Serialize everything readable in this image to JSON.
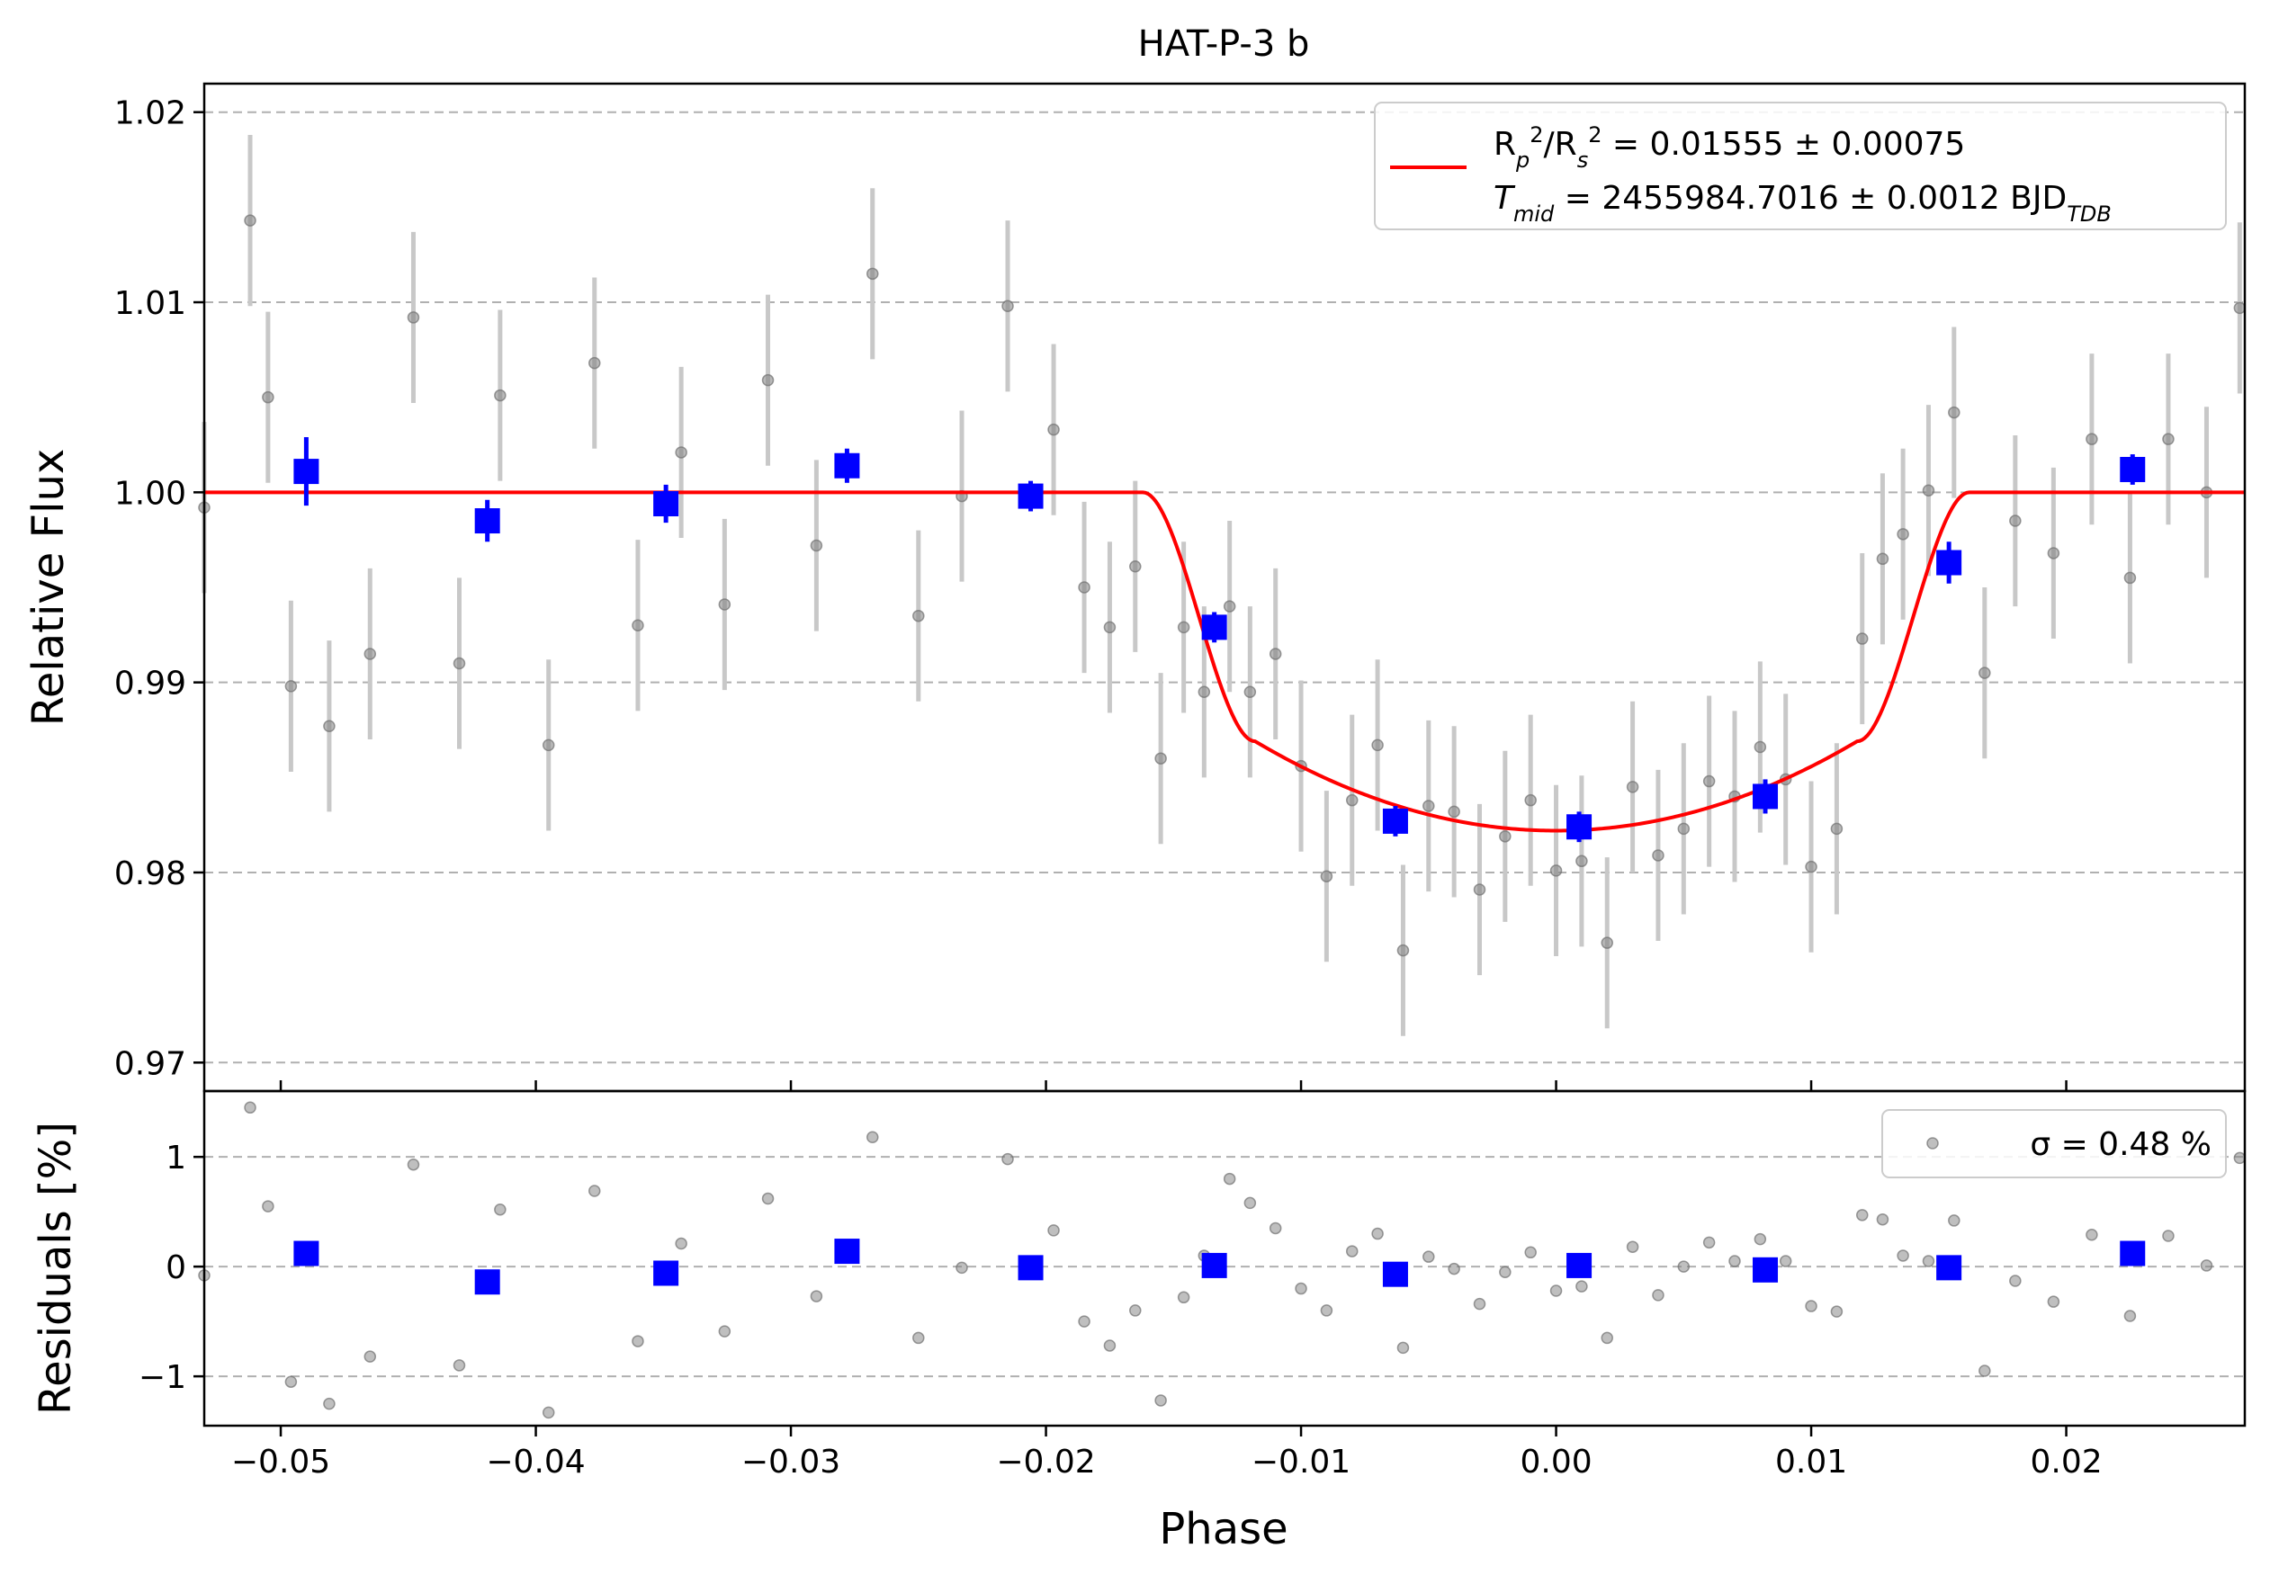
{
  "chart_data": [
    {
      "type": "scatter",
      "title": "HAT-P-3 b",
      "xlabel": "",
      "ylabel": "Relative Flux",
      "xlim": [
        -0.053,
        0.027
      ],
      "ylim": [
        0.9685,
        1.0215
      ],
      "y_ticks": [
        0.97,
        0.98,
        0.99,
        1.0,
        1.01,
        1.02
      ],
      "y_tick_labels": [
        "0.97",
        "0.98",
        "0.99",
        "1.00",
        "1.01",
        "1.02"
      ],
      "grid": "horizontal dashed",
      "legend_position": "top-right",
      "legend": {
        "line1": "R_p²/R_s² = 0.01555 ± 0.00075",
        "line2": "T_mid = 2455984.7016 ± 0.0012 BJD_TDB"
      },
      "model": {
        "name": "transit model",
        "color": "#ff0000",
        "baseline": 1.0,
        "min_flux": 0.9822,
        "ingress_start": -0.0162,
        "ingress_end": -0.0118,
        "egress_start": 0.0118,
        "egress_end": 0.0162
      },
      "binned": {
        "color": "#0000ff",
        "x": [
          -0.049,
          -0.0419,
          -0.0349,
          -0.0278,
          -0.0206,
          -0.0134,
          -0.0063,
          0.0009,
          0.0082,
          0.0154,
          0.0226
        ],
        "y": [
          1.0011,
          0.9985,
          0.9994,
          1.0014,
          0.9998,
          0.9929,
          0.9827,
          0.9824,
          0.984,
          0.9963,
          1.0012
        ],
        "err": [
          0.0018,
          0.0011,
          0.001,
          0.0009,
          0.0008,
          0.0008,
          0.0008,
          0.0008,
          0.0009,
          0.0011,
          0.0008
        ]
      },
      "raw": {
        "color": "#808080",
        "typical_error": 0.0045,
        "x": [
          -0.053,
          -0.0512,
          -0.0505,
          -0.0496,
          -0.0481,
          -0.0465,
          -0.0448,
          -0.043,
          -0.0414,
          -0.0395,
          -0.0377,
          -0.036,
          -0.0343,
          -0.0326,
          -0.0309,
          -0.029,
          -0.0268,
          -0.025,
          -0.0233,
          -0.0215,
          -0.0197,
          -0.0185,
          -0.0175,
          -0.0165,
          -0.0155,
          -0.0146,
          -0.0138,
          -0.0128,
          -0.012,
          -0.011,
          -0.01,
          -0.009,
          -0.008,
          -0.007,
          -0.006,
          -0.005,
          -0.004,
          -0.003,
          -0.002,
          -0.001,
          0.0,
          0.001,
          0.002,
          0.003,
          0.004,
          0.005,
          0.006,
          0.007,
          0.008,
          0.009,
          0.01,
          0.011,
          0.012,
          0.0128,
          0.0136,
          0.0146,
          0.0156,
          0.0168,
          0.018,
          0.0195,
          0.021,
          0.0225,
          0.024,
          0.0255,
          0.0268
        ],
        "y": [
          0.9992,
          1.0143,
          1.005,
          0.9898,
          0.9877,
          0.9915,
          1.0092,
          0.991,
          1.0051,
          0.9867,
          1.0068,
          0.993,
          1.0021,
          0.9941,
          1.0059,
          0.9972,
          1.0115,
          0.9935,
          0.9998,
          1.0098,
          1.0033,
          0.995,
          0.9929,
          0.9961,
          0.986,
          0.9929,
          0.9895,
          0.994,
          0.9895,
          0.9915,
          0.9856,
          0.9798,
          0.9838,
          0.9867,
          0.9759,
          0.9835,
          0.9832,
          0.9791,
          0.9819,
          0.9838,
          0.9801,
          0.9806,
          0.9763,
          0.9845,
          0.9809,
          0.9823,
          0.9848,
          0.984,
          0.9866,
          0.9849,
          0.9803,
          0.9823,
          0.9923,
          0.9965,
          0.9978,
          1.0001,
          1.0042,
          0.9905,
          0.9985,
          0.9968,
          1.0028,
          0.9955,
          1.0028,
          1.0,
          1.0097
        ]
      }
    },
    {
      "type": "scatter",
      "title": "",
      "xlabel": "Phase",
      "ylabel": "Residuals [%]",
      "xlim": [
        -0.053,
        0.027
      ],
      "ylim": [
        -1.45,
        1.6
      ],
      "x_ticks": [
        -0.05,
        -0.04,
        -0.03,
        -0.02,
        -0.01,
        0.0,
        0.01,
        0.02
      ],
      "x_tick_labels": [
        "−0.05",
        "−0.04",
        "−0.03",
        "−0.02",
        "−0.01",
        "0.00",
        "0.01",
        "0.02"
      ],
      "y_ticks": [
        -1,
        0,
        1
      ],
      "y_tick_labels": [
        "−1",
        "0",
        "1"
      ],
      "grid": "horizontal dashed",
      "legend_position": "top-right",
      "legend": {
        "label": "σ = 0.48 %"
      },
      "binned": {
        "color": "#0000ff",
        "x": [
          -0.049,
          -0.0419,
          -0.0349,
          -0.0278,
          -0.0206,
          -0.0134,
          -0.0063,
          0.0009,
          0.0082,
          0.0154,
          0.0226
        ],
        "y": [
          0.12,
          -0.14,
          -0.06,
          0.14,
          -0.01,
          0.01,
          -0.07,
          0.01,
          -0.03,
          -0.01,
          0.12
        ]
      },
      "raw": {
        "color": "#808080",
        "x": [
          -0.053,
          -0.0512,
          -0.0505,
          -0.0496,
          -0.0481,
          -0.0465,
          -0.0448,
          -0.043,
          -0.0414,
          -0.0395,
          -0.0377,
          -0.036,
          -0.0343,
          -0.0326,
          -0.0309,
          -0.029,
          -0.0268,
          -0.025,
          -0.0233,
          -0.0215,
          -0.0197,
          -0.0185,
          -0.0175,
          -0.0165,
          -0.0155,
          -0.0146,
          -0.0138,
          -0.0128,
          -0.012,
          -0.011,
          -0.01,
          -0.009,
          -0.008,
          -0.007,
          -0.006,
          -0.005,
          -0.004,
          -0.003,
          -0.002,
          -0.001,
          0.0,
          0.001,
          0.002,
          0.003,
          0.004,
          0.005,
          0.006,
          0.007,
          0.008,
          0.009,
          0.01,
          0.011,
          0.012,
          0.0128,
          0.0136,
          0.0146,
          0.0156,
          0.0168,
          0.018,
          0.0195,
          0.021,
          0.0225,
          0.024,
          0.0255,
          0.0268
        ],
        "y": [
          -0.08,
          1.45,
          0.55,
          -1.05,
          -1.25,
          -0.82,
          0.93,
          -0.9,
          0.52,
          -1.33,
          0.69,
          -0.68,
          0.21,
          -0.59,
          0.62,
          -0.27,
          1.18,
          -0.65,
          -0.01,
          0.98,
          0.33,
          -0.5,
          -0.72,
          -0.4,
          -1.22,
          -0.28,
          0.1,
          0.8,
          0.58,
          0.35,
          -0.2,
          -0.4,
          0.14,
          0.3,
          -0.74,
          0.09,
          -0.02,
          -0.34,
          -0.05,
          0.13,
          -0.22,
          -0.18,
          -0.65,
          0.18,
          -0.26,
          0.0,
          0.22,
          0.05,
          0.25,
          0.05,
          -0.36,
          -0.41,
          0.47,
          0.43,
          0.1,
          0.05,
          0.42,
          -0.95,
          -0.13,
          -0.32,
          0.29,
          -0.45,
          0.28,
          0.01,
          0.99
        ]
      }
    }
  ]
}
